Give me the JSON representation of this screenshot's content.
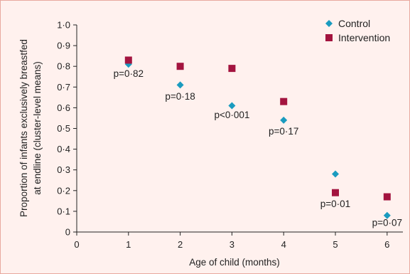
{
  "chart_data": {
    "type": "scatter",
    "xlabel": "Age of child (months)",
    "ylabel_lines": [
      "Proportion of infants exclusively breastfed",
      "at endline (cluster-level means)"
    ],
    "xlim": [
      0,
      6.3
    ],
    "ylim": [
      0,
      1.0
    ],
    "x_ticks": [
      "0",
      "1",
      "2",
      "3",
      "4",
      "5",
      "6"
    ],
    "y_ticks": [
      "0",
      "0·1",
      "0·2",
      "0·3",
      "0·4",
      "0·5",
      "0·6",
      "0·7",
      "0·8",
      "0·9",
      "1·0"
    ],
    "grid": false,
    "legend_position": "top-right",
    "series": [
      {
        "name": "Control",
        "marker": "diamond",
        "color": "#1a9bbf",
        "points": [
          {
            "x": 1,
            "y": 0.81
          },
          {
            "x": 2,
            "y": 0.71
          },
          {
            "x": 3,
            "y": 0.61
          },
          {
            "x": 4,
            "y": 0.54
          },
          {
            "x": 5,
            "y": 0.28
          },
          {
            "x": 6,
            "y": 0.08
          }
        ]
      },
      {
        "name": "Intervention",
        "marker": "square",
        "color": "#a3143f",
        "points": [
          {
            "x": 1,
            "y": 0.83
          },
          {
            "x": 2,
            "y": 0.8
          },
          {
            "x": 3,
            "y": 0.79
          },
          {
            "x": 4,
            "y": 0.63
          },
          {
            "x": 5,
            "y": 0.19
          },
          {
            "x": 6,
            "y": 0.17
          }
        ]
      }
    ],
    "annotations": [
      {
        "text": "p=0·82",
        "x": 1,
        "y": 0.75
      },
      {
        "text": "p=0·18",
        "x": 2,
        "y": 0.64
      },
      {
        "text": "p<0·001",
        "x": 3,
        "y": 0.55
      },
      {
        "text": "p=0·17",
        "x": 4,
        "y": 0.47
      },
      {
        "text": "p=0·01",
        "x": 5,
        "y": 0.12
      },
      {
        "text": "p=0·07",
        "x": 6,
        "y": 0.03
      }
    ]
  }
}
